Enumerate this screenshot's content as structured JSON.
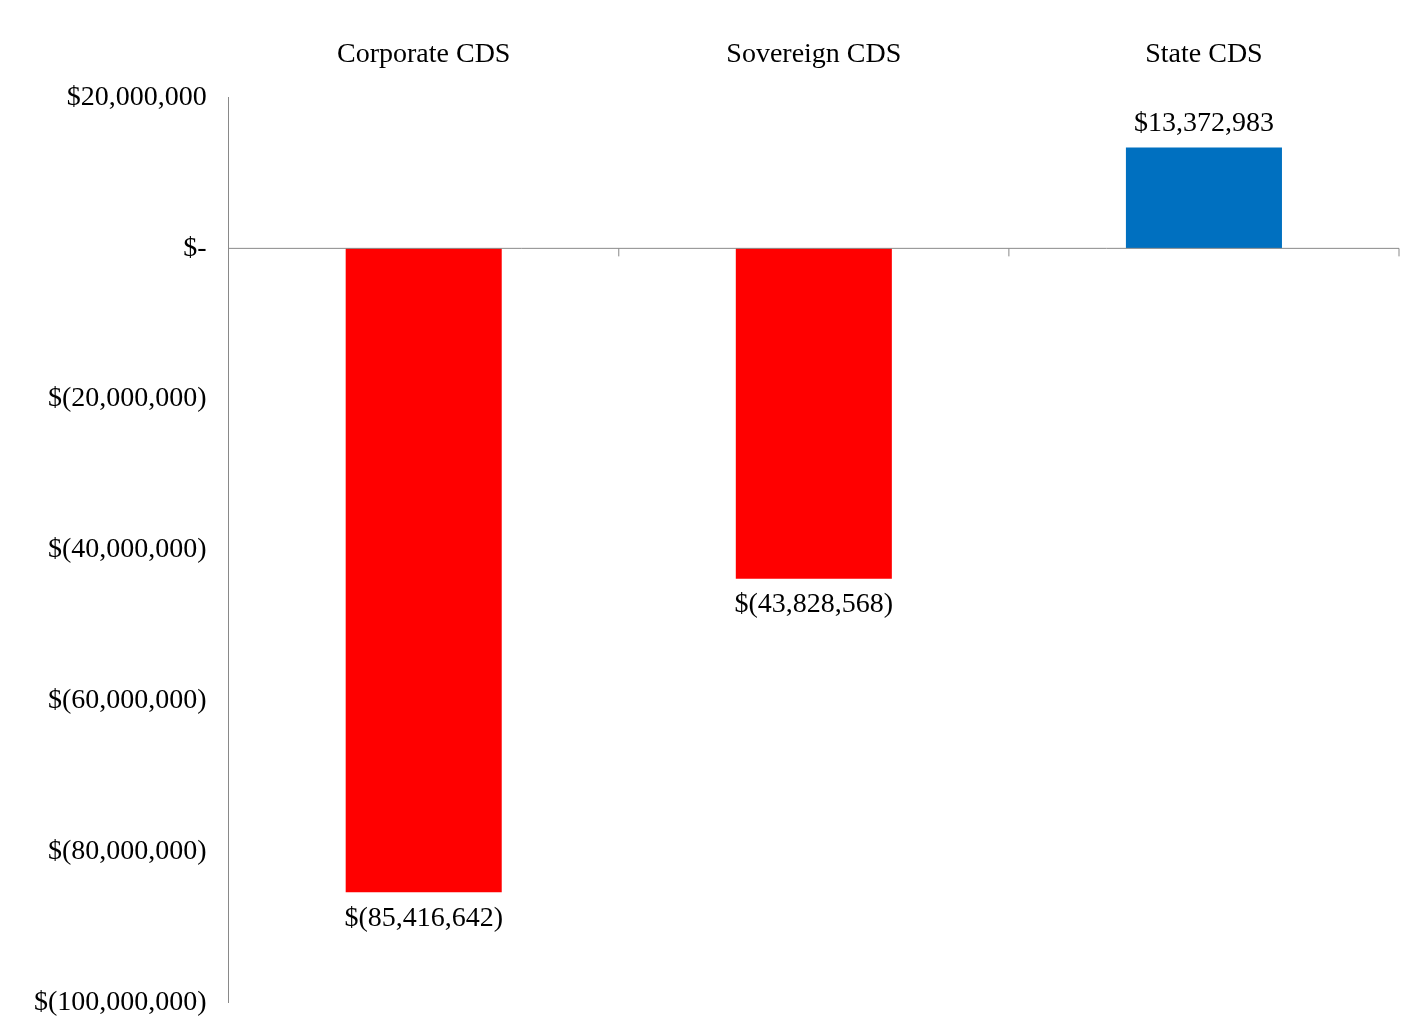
{
  "chart_data": {
    "type": "bar",
    "categories": [
      "Corporate CDS",
      "Sovereign CDS",
      "State CDS"
    ],
    "values": [
      -85416642,
      -43828568,
      13372983
    ],
    "value_labels": [
      "$(85,416,642)",
      "$(43,828,568)",
      "$13,372,983"
    ],
    "colors": [
      "#ff0000",
      "#ff0000",
      "#0070c0"
    ],
    "ylim": [
      -100000000,
      20000000
    ],
    "yticks": [
      {
        "value": -100000000,
        "label": "$(100,000,000)"
      },
      {
        "value": -80000000,
        "label": "$(80,000,000)"
      },
      {
        "value": -60000000,
        "label": "$(60,000,000)"
      },
      {
        "value": -40000000,
        "label": "$(40,000,000)"
      },
      {
        "value": -20000000,
        "label": "$(20,000,000)"
      },
      {
        "value": 0,
        "label": "$-"
      },
      {
        "value": 20000000,
        "label": "$20,000,000"
      }
    ],
    "grid": false,
    "data_labels": true
  }
}
